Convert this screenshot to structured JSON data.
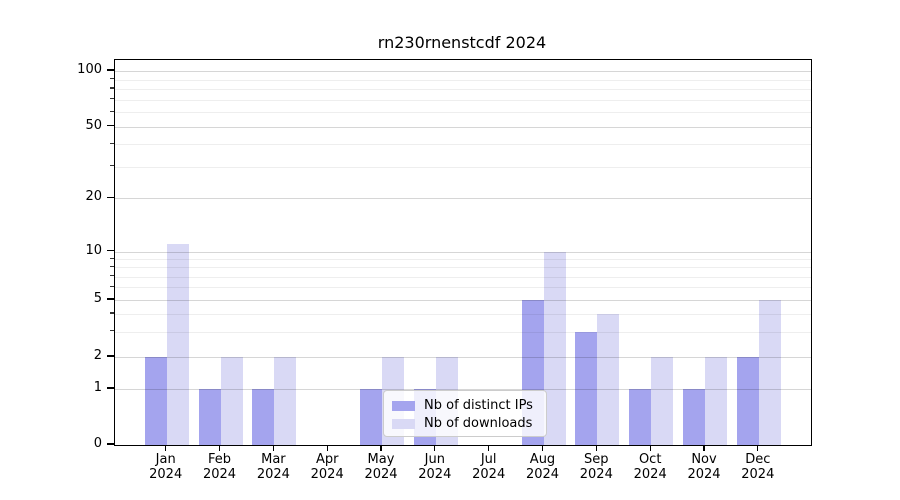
{
  "chart_data": {
    "type": "bar",
    "title": "rn230rnenstcdf 2024",
    "categories": [
      "Jan",
      "Feb",
      "Mar",
      "Apr",
      "May",
      "Jun",
      "Jul",
      "Aug",
      "Sep",
      "Oct",
      "Nov",
      "Dec"
    ],
    "category_year": "2024",
    "series": [
      {
        "name": "Nb of distinct IPs",
        "key": "distinct-ips",
        "color": "#a4a4ee",
        "values": [
          2,
          1,
          1,
          0,
          1,
          1,
          0,
          5,
          3,
          1,
          1,
          2
        ]
      },
      {
        "name": "Nb of downloads",
        "key": "downloads",
        "color": "#d9d9f5",
        "values": [
          11,
          2,
          2,
          0,
          2,
          2,
          0,
          10,
          4,
          2,
          2,
          5
        ]
      }
    ],
    "y_axis": {
      "ticks": [
        0,
        1,
        2,
        5,
        10,
        20,
        50,
        100
      ],
      "minor_gridlines": [
        3,
        4,
        6,
        7,
        8,
        9,
        30,
        40,
        60,
        70,
        80,
        90
      ],
      "scale": "log-like-with-zero",
      "range": [
        0,
        100
      ]
    },
    "legend": {
      "position": "lower-center",
      "entries": [
        "Nb of distinct IPs",
        "Nb of downloads"
      ]
    },
    "grid": true,
    "colors": {
      "distinct_ips": "#a4a4ee",
      "downloads": "#d9d9f5",
      "background": "#ffffff",
      "axis": "#000000"
    }
  }
}
